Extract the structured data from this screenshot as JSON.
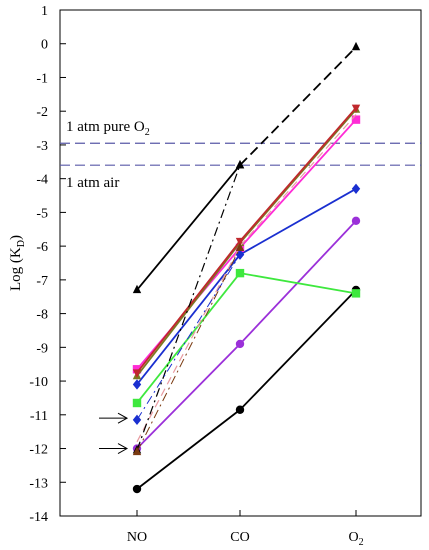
{
  "chart_data": {
    "type": "line",
    "categories": [
      "NO",
      "CO",
      "O2"
    ],
    "category_labels": [
      {
        "main": "NO",
        "sub": ""
      },
      {
        "main": "CO",
        "sub": ""
      },
      {
        "main": "O",
        "sub": "2"
      }
    ],
    "ylabel": {
      "main": "Log (K",
      "sub": "D",
      "end": ")"
    },
    "ylim": [
      -14,
      1
    ],
    "yticks": [
      1,
      0,
      -1,
      -2,
      -3,
      -4,
      -5,
      -6,
      -7,
      -8,
      -9,
      -10,
      -11,
      -12,
      -13,
      -14
    ],
    "grid": false,
    "reference_lines": [
      {
        "label": "1 atm pure O",
        "sub": "2",
        "y": -2.95,
        "color": "#5a5aa8",
        "dash": "dashed"
      },
      {
        "label": "1 atm air",
        "sub": "",
        "y": -3.6,
        "color": "#5a5aa8",
        "dash": "dashed"
      }
    ],
    "annotations": [
      {
        "type": "arrow",
        "points_to_category": "NO",
        "y": -11.1
      },
      {
        "type": "arrow",
        "points_to_category": "NO",
        "y": -12.0
      }
    ],
    "series": [
      {
        "values": [
          -13.2,
          -10.85,
          -7.3
        ],
        "color": "#000000",
        "marker": "circle",
        "line": "solid",
        "width": 1.8
      },
      {
        "values": [
          -12.0,
          -8.9,
          -5.25
        ],
        "color": "#9b30d9",
        "marker": "circle",
        "line": "solid",
        "width": 1.8
      },
      {
        "values": [
          -10.65,
          -6.8,
          -7.4
        ],
        "color": "#3ee83e",
        "marker": "square",
        "line": "solid",
        "width": 1.8
      },
      {
        "values": [
          -10.1,
          -6.25,
          -4.3
        ],
        "color": "#1a2fd0",
        "marker": "diamond",
        "line": "solid",
        "width": 1.8
      },
      {
        "values": [
          -9.65,
          -6.05,
          -2.25
        ],
        "color": "#ff2cd6",
        "marker": "square",
        "line": "solid",
        "width": 1.8
      },
      {
        "values": [
          -9.85,
          -5.9,
          -1.95
        ],
        "color": "#7a7a20",
        "marker": "triangle",
        "line": "solid",
        "width": 1.8
      },
      {
        "values": [
          -9.75,
          -5.85,
          -1.9
        ],
        "color": "#c0282d",
        "marker": "triangle-down",
        "line": "solid",
        "width": 1.8
      },
      {
        "values": [
          -7.3,
          -3.6,
          -0.1
        ],
        "color": "#000000",
        "marker": "triangle",
        "line": "solid-dashed",
        "width": 1.8
      },
      {
        "values": [
          -11.8,
          -6.0,
          -2.1
        ],
        "color": "#e89aa0",
        "marker": "none",
        "line": "dashed",
        "width": 1.2
      },
      {
        "values": [
          -12.05,
          -3.6,
          null
        ],
        "color": "#000000",
        "marker": "triangle",
        "line": "dashdot",
        "width": 1.2
      },
      {
        "values": [
          -11.15,
          -6.25,
          null
        ],
        "color": "#1a2fd0",
        "marker": "diamond",
        "line": "dashdot",
        "width": 1.0
      },
      {
        "values": [
          -12.1,
          -6.05,
          null
        ],
        "color": "#7a3a10",
        "marker": "triangle",
        "line": "dashdot",
        "width": 1.0
      }
    ]
  }
}
